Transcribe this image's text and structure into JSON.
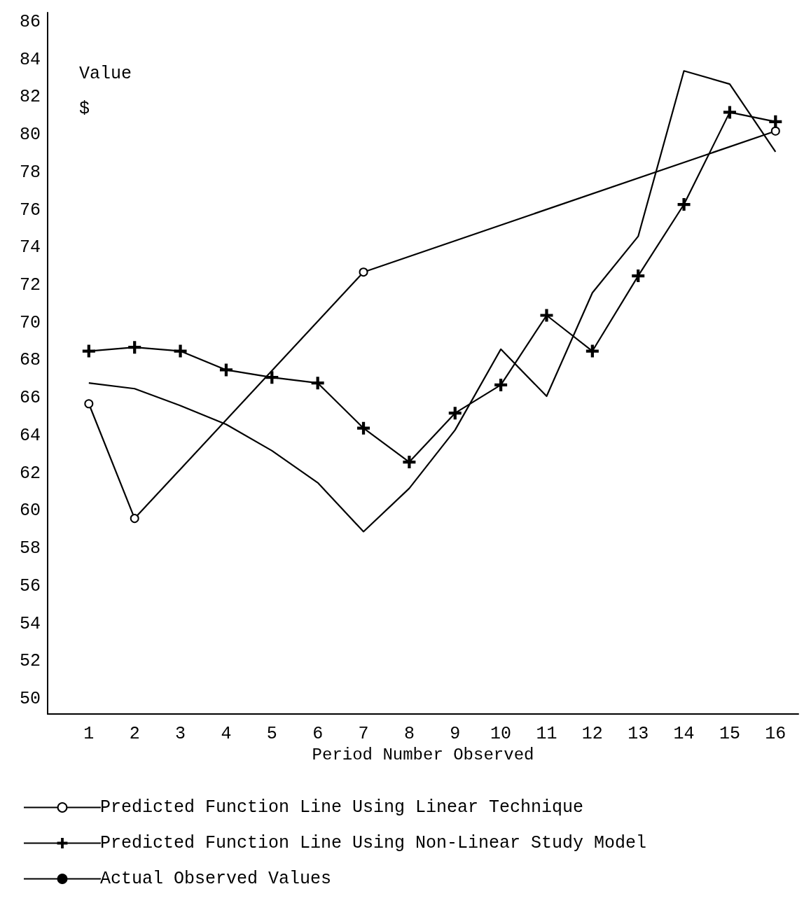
{
  "chart_data": {
    "type": "line",
    "xlabel": "Period Number Observed",
    "ylabel": "Value\n$",
    "xlim": [
      0.1,
      16.5
    ],
    "xticks": [
      1,
      2,
      3,
      4,
      5,
      6,
      7,
      8,
      9,
      10,
      11,
      12,
      13,
      14,
      15,
      16
    ],
    "ylim": [
      49.2,
      86.5
    ],
    "yticks": [
      50,
      52,
      54,
      56,
      58,
      60,
      62,
      64,
      66,
      68,
      70,
      72,
      74,
      76,
      78,
      80,
      82,
      84,
      86
    ],
    "grid": false,
    "legend": "bottom",
    "line_style": "solid",
    "series": [
      {
        "name": "Predicted Function Line Using Linear Technique",
        "color": "#000000",
        "marker": "circle",
        "x": [
          1,
          2,
          7,
          16
        ],
        "values": [
          65.7,
          59.6,
          72.7,
          80.2
        ]
      },
      {
        "name": "Predicted Function Line Using Non-Linear Study Model",
        "color": "#000000",
        "marker": "cross",
        "x": [
          1,
          2,
          3,
          4,
          5,
          6,
          7,
          8,
          9,
          10,
          11,
          12,
          13,
          14,
          15,
          16
        ],
        "values": [
          68.5,
          68.7,
          68.5,
          67.5,
          67.1,
          66.8,
          64.4,
          62.6,
          65.2,
          66.7,
          70.4,
          68.5,
          72.5,
          76.3,
          81.2,
          80.7
        ]
      },
      {
        "name": "Actual Observed Values",
        "color": "#000000",
        "marker": "none",
        "x": [
          1,
          2,
          3,
          4,
          5,
          6,
          7,
          8,
          9,
          10,
          11,
          12,
          13,
          14,
          15,
          16
        ],
        "values": [
          66.8,
          66.5,
          65.6,
          64.6,
          63.2,
          61.5,
          58.9,
          61.2,
          64.3,
          68.6,
          66.1,
          71.6,
          74.6,
          83.4,
          82.7,
          79.1
        ]
      }
    ]
  }
}
